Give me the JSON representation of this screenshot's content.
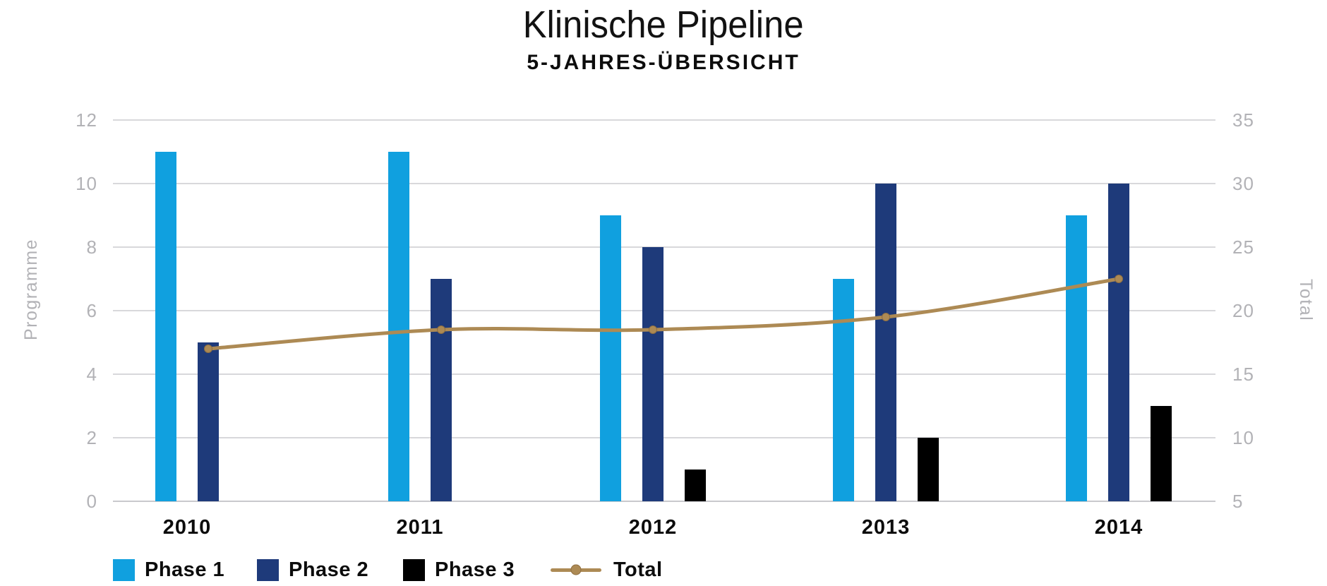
{
  "header": {
    "title": "Klinische Pipeline",
    "subtitle": "5-JAHRES-ÜBERSICHT"
  },
  "chart_data": {
    "type": "bar",
    "title": "Klinische Pipeline",
    "subtitle": "5-JAHRES-ÜBERSICHT",
    "categories": [
      "2010",
      "2011",
      "2012",
      "2013",
      "2014"
    ],
    "series": [
      {
        "name": "Phase 1",
        "type": "bar",
        "axis": "left",
        "color": "#10a0df",
        "values": [
          11,
          11,
          9,
          7,
          9
        ]
      },
      {
        "name": "Phase 2",
        "type": "bar",
        "axis": "left",
        "color": "#1e3a7a",
        "values": [
          5,
          7,
          8,
          10,
          10
        ]
      },
      {
        "name": "Phase 3",
        "type": "bar",
        "axis": "left",
        "color": "#000000",
        "values": [
          0,
          0,
          1,
          2,
          3
        ]
      },
      {
        "name": "Total",
        "type": "line",
        "axis": "right",
        "color": "#ad8a54",
        "values": [
          17,
          18.5,
          18.5,
          19.5,
          22.5
        ]
      }
    ],
    "left_axis": {
      "label": "Programme",
      "min": 0,
      "max": 12,
      "ticks": [
        0,
        2,
        4,
        6,
        8,
        10,
        12
      ]
    },
    "right_axis": {
      "label": "Total",
      "min": 5,
      "max": 35,
      "ticks": [
        5,
        10,
        15,
        20,
        25,
        30,
        35
      ]
    },
    "grid": true,
    "legend_position": "bottom",
    "style": {
      "grid_color": "#d8d8db",
      "baseline_color": "#c9c9cd",
      "axis_text_color": "#b2b2b6",
      "category_text_color": "#0c0c0c",
      "marker_stroke_color": "#8f6f42"
    }
  }
}
